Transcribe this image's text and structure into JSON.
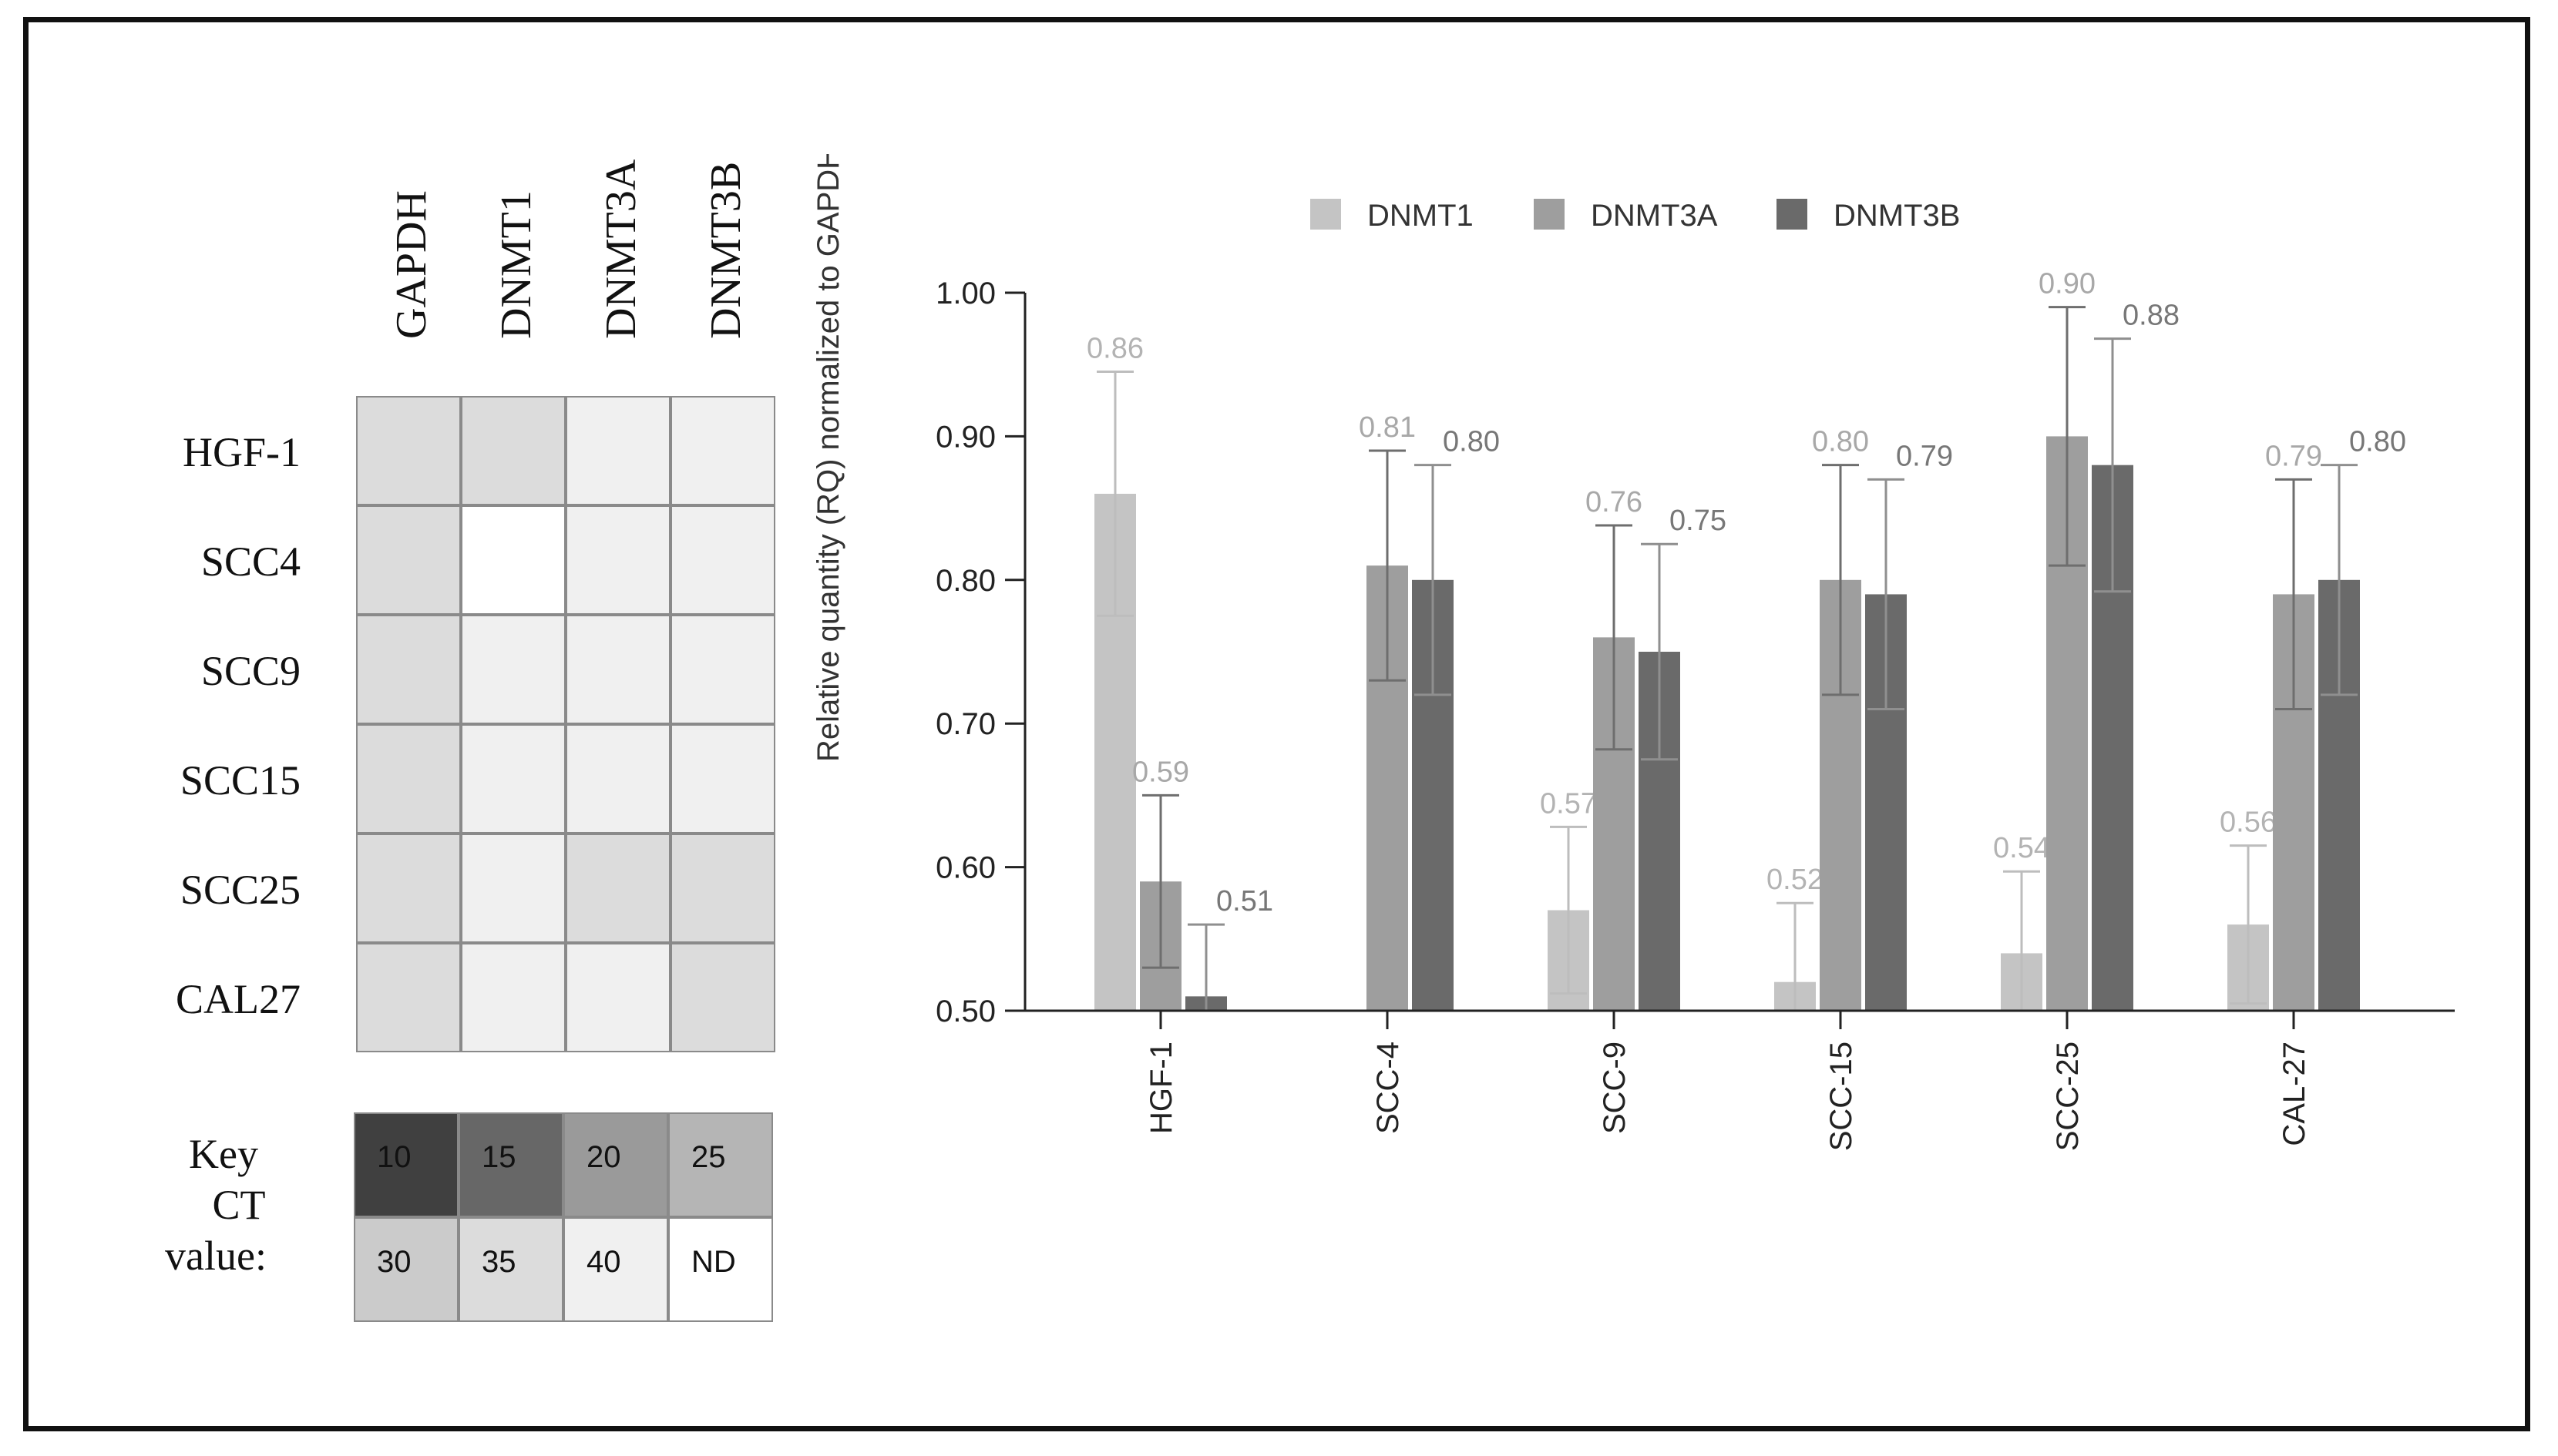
{
  "heatmap": {
    "columns": [
      "GAPDH",
      "DNMT1",
      "DNMT3A",
      "DNMT3B"
    ],
    "rows": [
      "HGF-1",
      "SCC4",
      "SCC9",
      "SCC15",
      "SCC25",
      "CAL27"
    ],
    "ct_values": [
      [
        "35",
        "35",
        "40",
        "40"
      ],
      [
        "35",
        "ND",
        "40",
        "40"
      ],
      [
        "35",
        "40",
        "40",
        "40"
      ],
      [
        "35",
        "40",
        "40",
        "40"
      ],
      [
        "35",
        "40",
        "35",
        "35"
      ],
      [
        "35",
        "40",
        "40",
        "35"
      ]
    ]
  },
  "key": {
    "label_lines": [
      "Key",
      "CT",
      "value:"
    ],
    "entries": [
      {
        "label": "10",
        "color": "#404040",
        "text_color": "#111111"
      },
      {
        "label": "15",
        "color": "#676767",
        "text_color": "#111111"
      },
      {
        "label": "20",
        "color": "#9a9a9a",
        "text_color": "#111111"
      },
      {
        "label": "25",
        "color": "#b5b5b5",
        "text_color": "#111111"
      },
      {
        "label": "30",
        "color": "#cbcbcb",
        "text_color": "#111111"
      },
      {
        "label": "35",
        "color": "#dcdcdc",
        "text_color": "#111111"
      },
      {
        "label": "40",
        "color": "#f0f0f0",
        "text_color": "#111111"
      },
      {
        "label": "ND",
        "color": "#ffffff",
        "text_color": "#111111"
      }
    ]
  },
  "chart_data": {
    "type": "bar",
    "title": "",
    "xlabel": "",
    "ylabel": "Relative quantity (RQ) normalized to GAPDH",
    "ylim": [
      0.5,
      1.0
    ],
    "yticks": [
      "0.50",
      "0.60",
      "0.70",
      "0.80",
      "0.90",
      "1.00"
    ],
    "categories": [
      "HGF-1",
      "SCC-4",
      "SCC-9",
      "SCC-15",
      "SCC-25",
      "CAL-27"
    ],
    "legend_position": "top",
    "series": [
      {
        "name": "DNMT1",
        "color": "#c4c4c4",
        "label_color": "#b3b3b3",
        "values": [
          0.86,
          null,
          0.57,
          0.52,
          0.54,
          0.56
        ],
        "errors": [
          0.085,
          null,
          0.058,
          0.055,
          0.057,
          0.055
        ],
        "labels": [
          "0.86",
          "",
          "0.57",
          "0.52",
          "0.54",
          "0.56"
        ]
      },
      {
        "name": "DNMT3A",
        "color": "#9e9e9e",
        "label_color": "#a8a8a8",
        "values": [
          0.59,
          0.81,
          0.76,
          0.8,
          0.9,
          0.79
        ],
        "errors": [
          0.06,
          0.08,
          0.078,
          0.08,
          0.09,
          0.08
        ],
        "labels": [
          "0.59",
          "0.81",
          "0.76",
          "0.80",
          "0.90",
          "0.79"
        ]
      },
      {
        "name": "DNMT3B",
        "color": "#6a6a6a",
        "label_color": "#777777",
        "values": [
          0.51,
          0.8,
          0.75,
          0.79,
          0.88,
          0.8
        ],
        "errors": [
          0.05,
          0.08,
          0.075,
          0.08,
          0.088,
          0.08
        ],
        "labels": [
          "0.51",
          "0.80",
          "0.75",
          "0.79",
          "0.88",
          "0.80"
        ]
      }
    ]
  }
}
